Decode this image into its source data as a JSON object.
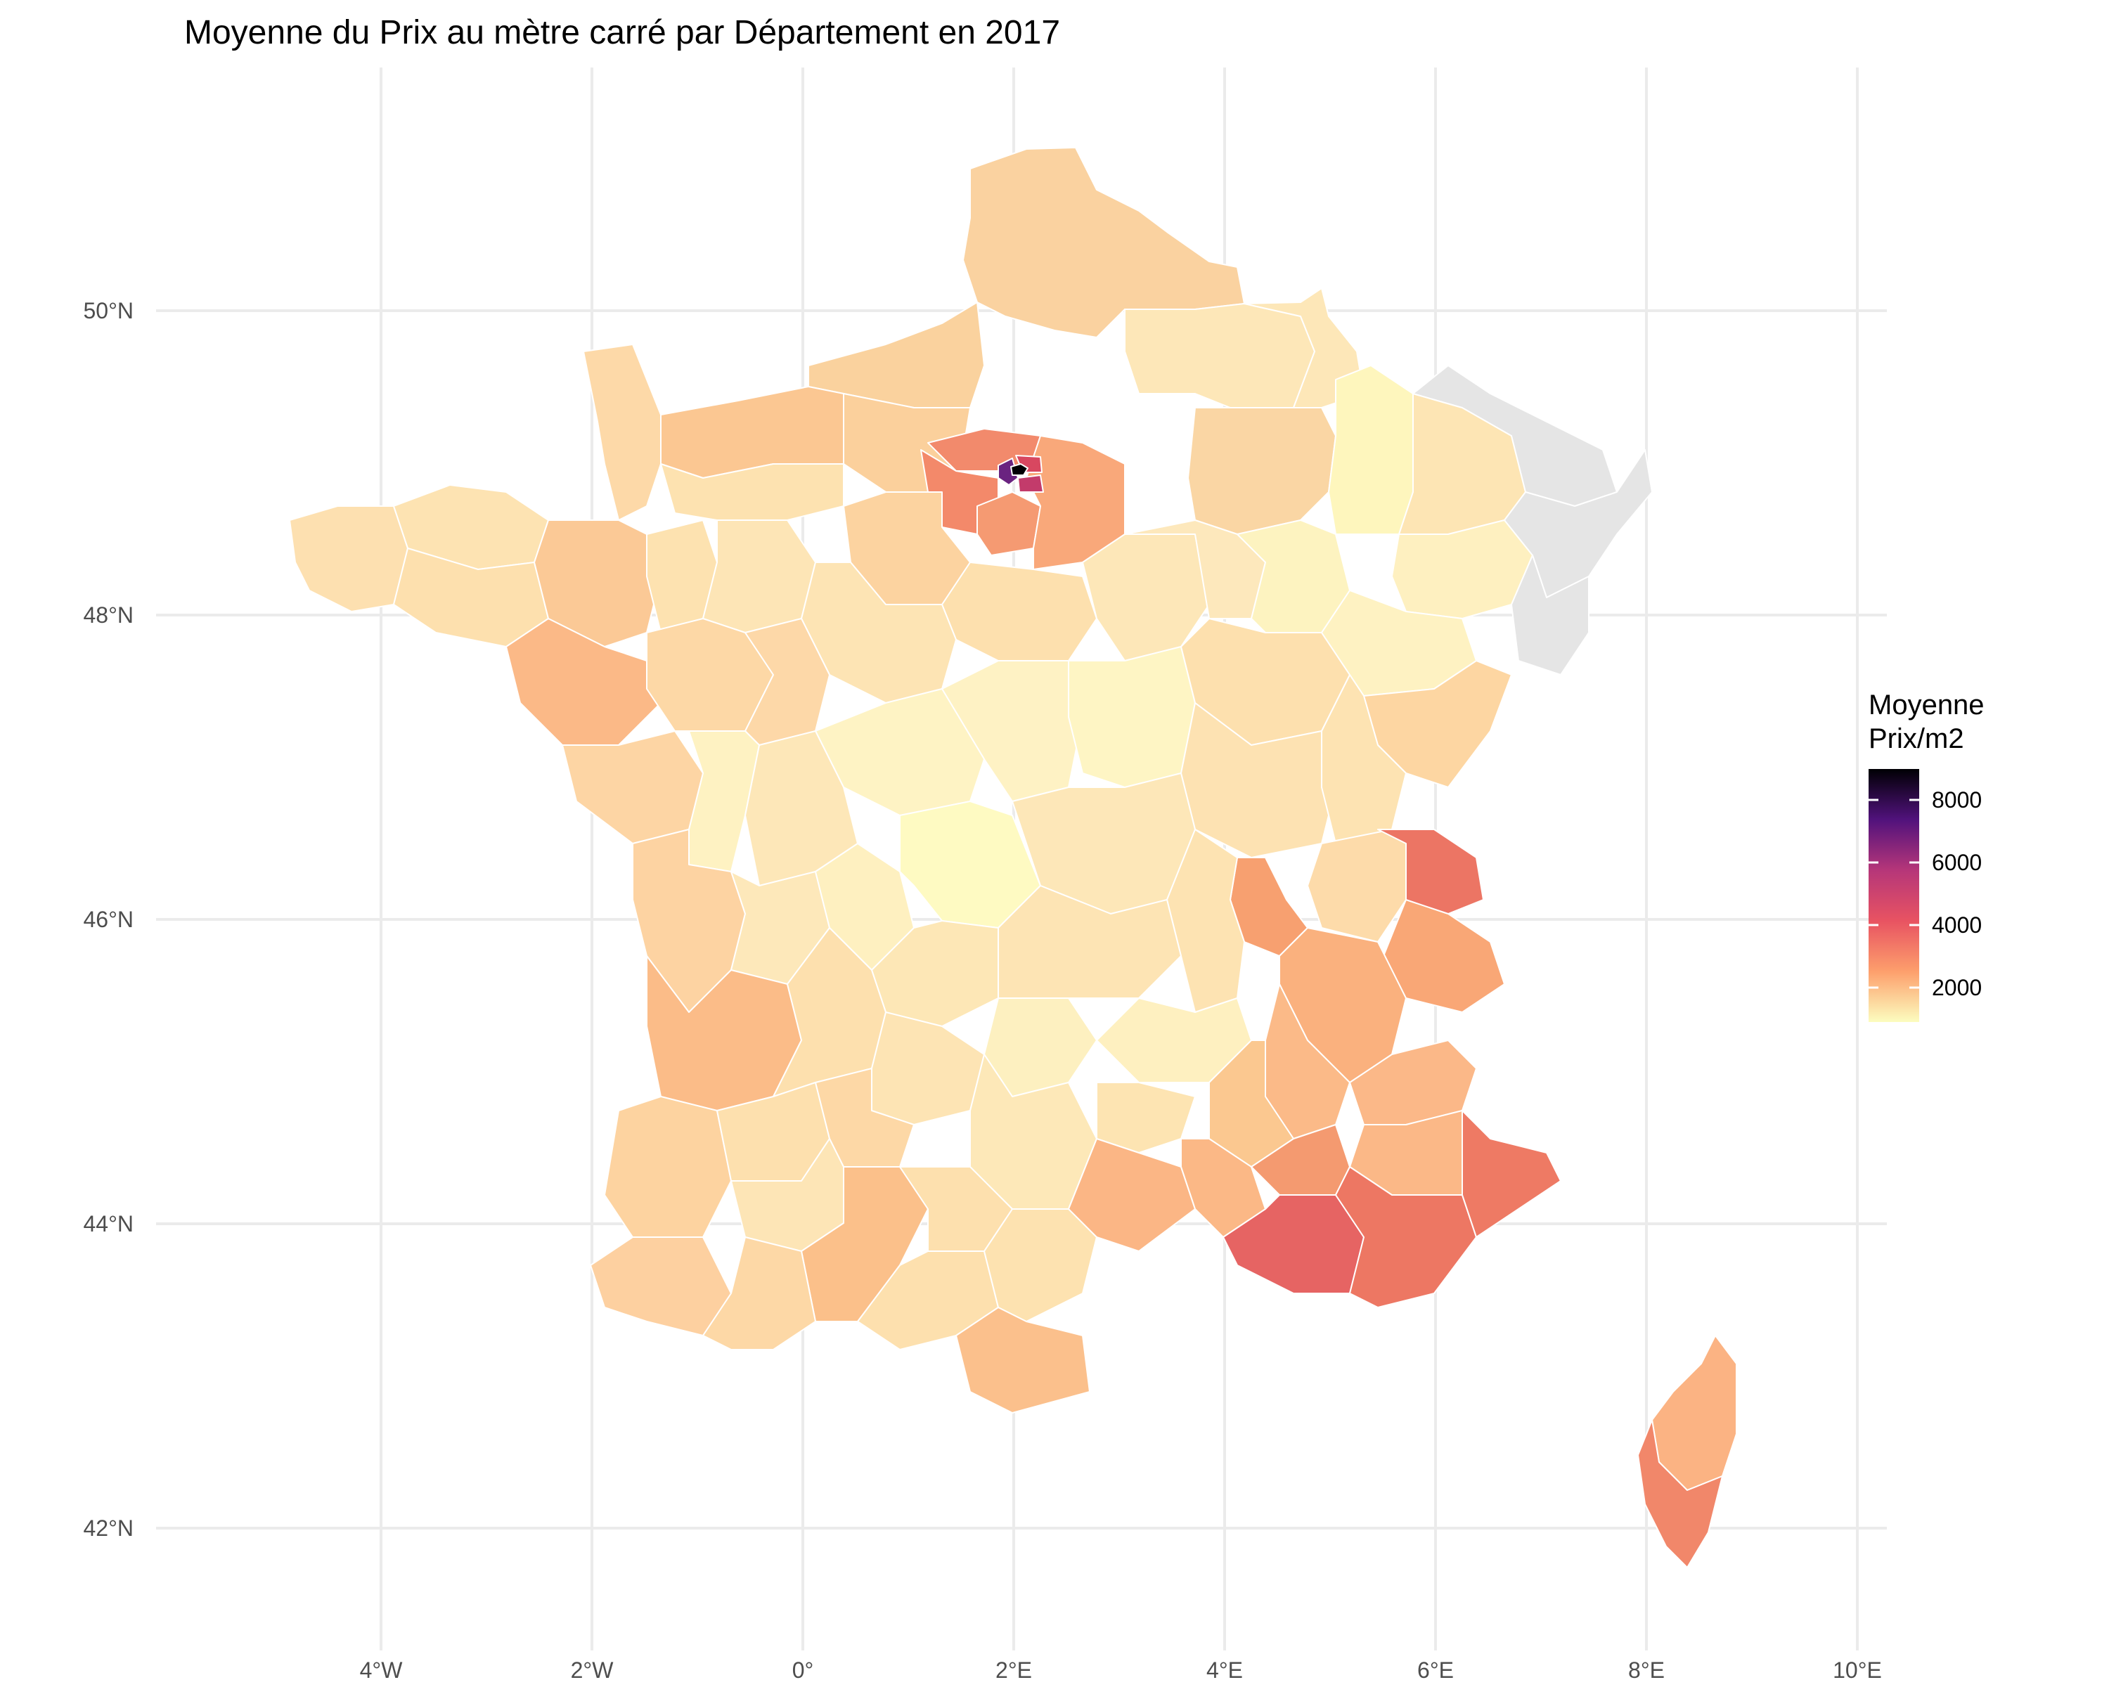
{
  "title": "Moyenne du Prix au mètre carré par Département en 2017",
  "legend": {
    "title_line1": "Moyenne",
    "title_line2": "Prix/m2",
    "ticks": [
      "8000",
      "6000",
      "4000",
      "2000"
    ]
  },
  "axes": {
    "x_ticks": [
      "4°W",
      "2°W",
      "0°",
      "2°E",
      "4°E",
      "6°E",
      "8°E",
      "10°E"
    ],
    "y_ticks": [
      "50°N",
      "48°N",
      "46°N",
      "44°N",
      "42°N"
    ]
  },
  "colors": {
    "palette_low": "#fcfdbf",
    "palette_high": "#000004",
    "missing": "#e5e5e5",
    "grid": "#ebebeb",
    "border": "#ffffff"
  },
  "chart_data": {
    "type": "choropleth",
    "value_label": "Moyenne Prix/m2",
    "scale": {
      "min": 1000,
      "max": 9200,
      "palette": "magma"
    },
    "regions": [
      {
        "name": "Paris",
        "value": 9200
      },
      {
        "name": "Hauts-de-Seine",
        "value": 6200
      },
      {
        "name": "Val-de-Marne",
        "value": 4600
      },
      {
        "name": "Seine-Saint-Denis",
        "value": 3800
      },
      {
        "name": "Yvelines",
        "value": 3300
      },
      {
        "name": "Essonne",
        "value": 2900
      },
      {
        "name": "Val-d'Oise",
        "value": 2700
      },
      {
        "name": "Seine-et-Marne",
        "value": 2400
      },
      {
        "name": "Alpes-Maritimes",
        "value": 3500
      },
      {
        "name": "Bouches-du-Rhône",
        "value": 3400
      },
      {
        "name": "Var",
        "value": 3300
      },
      {
        "name": "Haute-Savoie",
        "value": 3400
      },
      {
        "name": "Savoie",
        "value": 2700
      },
      {
        "name": "Rhône",
        "value": 2800
      },
      {
        "name": "Corse-du-Sud",
        "value": 2900
      },
      {
        "name": "Haute-Corse",
        "value": 2300
      },
      {
        "name": "Gironde",
        "value": 2300
      },
      {
        "name": "Ille-et-Vilaine",
        "value": 2300
      },
      {
        "name": "Loire-Atlantique",
        "value": 2100
      },
      {
        "name": "Hérault",
        "value": 2300
      },
      {
        "name": "Vaucluse",
        "value": 2600
      },
      {
        "name": "Gard",
        "value": 2100
      },
      {
        "name": "Isère",
        "value": 2200
      },
      {
        "name": "Drôme",
        "value": 2000
      },
      {
        "name": "Haute-Garonne",
        "value": 2300
      },
      {
        "name": "Pyrénées-Orientales",
        "value": 2000
      },
      {
        "name": "Calvados",
        "value": 2100
      },
      {
        "name": "Oise",
        "value": 2000
      },
      {
        "name": "Creuse",
        "value": 900
      },
      {
        "name": "Meuse",
        "value": 1000
      },
      {
        "name": "Haute-Marne",
        "value": 1100
      },
      {
        "name": "Nièvre",
        "value": 1200
      },
      {
        "name": "Cher",
        "value": 1200
      },
      {
        "name": "Indre",
        "value": 1100
      },
      {
        "name": "Cantal",
        "value": 1300
      }
    ],
    "missing_regions": [
      "Moselle",
      "Bas-Rhin",
      "Haut-Rhin"
    ]
  }
}
